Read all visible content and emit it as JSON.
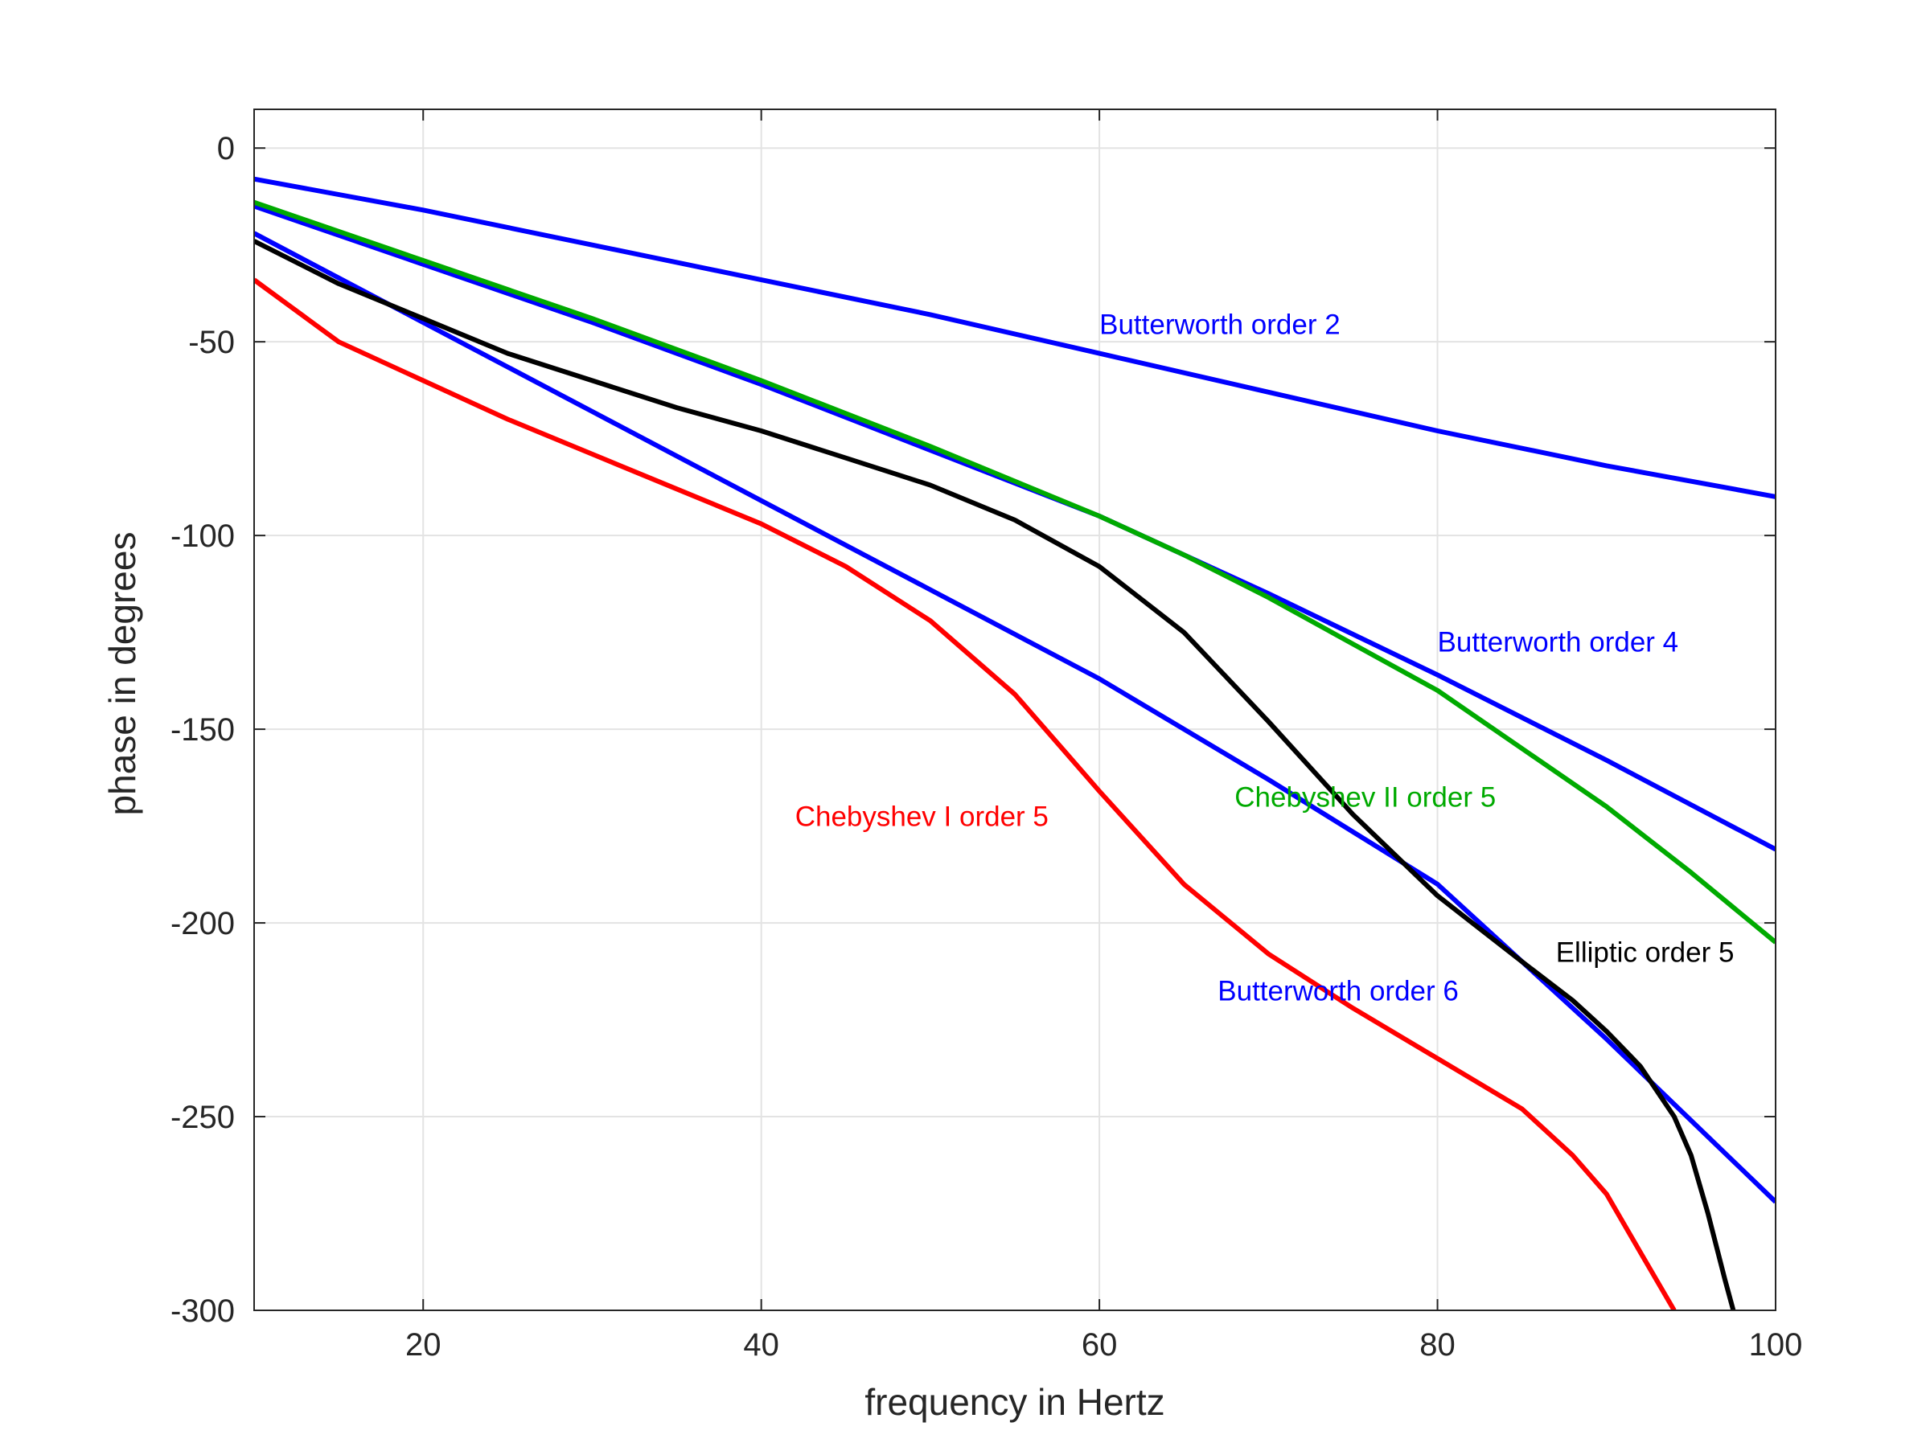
{
  "chart_data": {
    "type": "line",
    "title": "",
    "xlabel": "frequency in Hertz",
    "ylabel": "phase in degrees",
    "xlim": [
      10,
      100
    ],
    "ylim": [
      -300,
      10
    ],
    "xticks": [
      20,
      40,
      60,
      80,
      100
    ],
    "yticks": [
      0,
      -50,
      -100,
      -150,
      -200,
      -250,
      -300
    ],
    "grid": true,
    "legend": "none",
    "series": [
      {
        "name": "Butterworth order 2",
        "color": "#0000ff",
        "x": [
          10,
          20,
          30,
          40,
          50,
          60,
          70,
          80,
          90,
          100
        ],
        "y": [
          -8,
          -16,
          -25,
          -34,
          -43,
          -53,
          -63,
          -73,
          -82,
          -90
        ]
      },
      {
        "name": "Butterworth order 4",
        "color": "#0000ff",
        "x": [
          10,
          20,
          30,
          40,
          50,
          60,
          70,
          80,
          90,
          100
        ],
        "y": [
          -15,
          -30,
          -45,
          -61,
          -78,
          -95,
          -115,
          -136,
          -158,
          -181
        ]
      },
      {
        "name": "Chebyshev II order 5",
        "color": "#00aa00",
        "x": [
          10,
          20,
          30,
          40,
          50,
          60,
          65,
          70,
          75,
          80,
          85,
          90,
          95,
          100
        ],
        "y": [
          -14,
          -29,
          -44,
          -60,
          -77,
          -95,
          -105,
          -116,
          -128,
          -140,
          -155,
          -170,
          -187,
          -205
        ]
      },
      {
        "name": "Butterworth order 6",
        "color": "#0000ff",
        "x": [
          10,
          20,
          30,
          40,
          50,
          60,
          70,
          80,
          90,
          100
        ],
        "y": [
          -22,
          -45,
          -68,
          -91,
          -114,
          -137,
          -163,
          -190,
          -230,
          -272
        ]
      },
      {
        "name": "Elliptic order 5",
        "color": "#000000",
        "x": [
          10,
          15,
          20,
          25,
          30,
          35,
          40,
          45,
          50,
          55,
          60,
          65,
          70,
          75,
          80,
          85,
          88,
          90,
          92,
          94,
          95,
          96,
          97,
          97.5
        ],
        "y": [
          -24,
          -35,
          -44,
          -53,
          -60,
          -67,
          -73,
          -80,
          -87,
          -96,
          -108,
          -125,
          -148,
          -172,
          -193,
          -210,
          -220,
          -228,
          -237,
          -250,
          -260,
          -275,
          -292,
          -300
        ]
      },
      {
        "name": "Chebyshev I order 5",
        "color": "#ff0000",
        "x": [
          10,
          15,
          20,
          25,
          30,
          35,
          40,
          45,
          50,
          55,
          58,
          60,
          65,
          70,
          75,
          80,
          85,
          88,
          90,
          92,
          94
        ],
        "y": [
          -34,
          -50,
          -60,
          -70,
          -79,
          -88,
          -97,
          -108,
          -122,
          -141,
          -156,
          -166,
          -190,
          -208,
          -222,
          -235,
          -248,
          -260,
          -270,
          -285,
          -300
        ]
      }
    ],
    "annotations": [
      {
        "text": "Butterworth order 2",
        "color": "#0000ff",
        "x": 60,
        "y": -48
      },
      {
        "text": "Butterworth order 4",
        "color": "#0000ff",
        "x": 80,
        "y": -130
      },
      {
        "text": "Chebyshev II order 5",
        "color": "#00aa00",
        "x": 68,
        "y": -170
      },
      {
        "text": "Chebyshev I order 5",
        "color": "#ff0000",
        "x": 42,
        "y": -175
      },
      {
        "text": "Elliptic order 5",
        "color": "#000000",
        "x": 87,
        "y": -210
      },
      {
        "text": "Butterworth order 6",
        "color": "#0000ff",
        "x": 67,
        "y": -220
      }
    ]
  }
}
